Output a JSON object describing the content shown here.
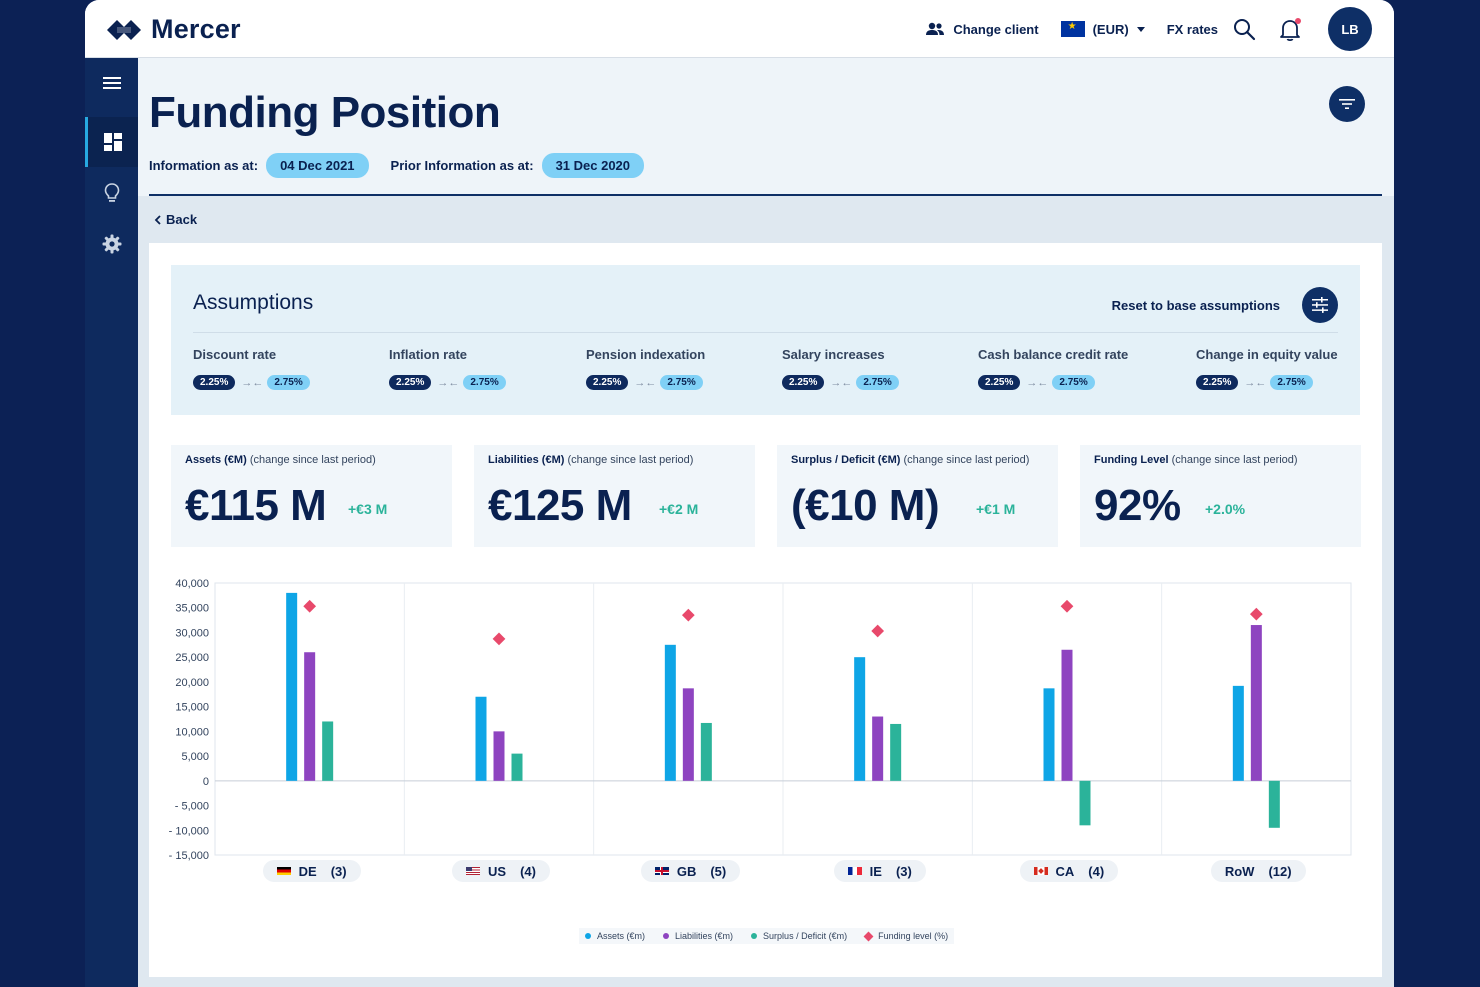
{
  "brand": {
    "name": "Mercer"
  },
  "header": {
    "change_client": "Change client",
    "currency": "(EUR)",
    "fx_rates": "FX rates",
    "user_initials": "LB"
  },
  "page": {
    "title": "Funding Position",
    "info_label": "Information as at:",
    "info_date": "04 Dec 2021",
    "prior_label": "Prior Information as at:",
    "prior_date": "31 Dec 2020",
    "back": "Back"
  },
  "assumptions": {
    "title": "Assumptions",
    "reset_label": "Reset to base assumptions",
    "items": [
      {
        "label": "Discount rate",
        "base": "2.25%",
        "current": "2.75%"
      },
      {
        "label": "Inflation rate",
        "base": "2.25%",
        "current": "2.75%"
      },
      {
        "label": "Pension indexation",
        "base": "2.25%",
        "current": "2.75%"
      },
      {
        "label": "Salary increases",
        "base": "2.25%",
        "current": "2.75%"
      },
      {
        "label": "Cash balance credit rate",
        "base": "2.25%",
        "current": "2.75%"
      },
      {
        "label": "Change in equity value",
        "base": "2.25%",
        "current": "2.75%"
      }
    ]
  },
  "kpis": [
    {
      "label": "Assets (€M)",
      "sub": "(change since last period)",
      "value": "€115 M",
      "change": "+€3 M"
    },
    {
      "label": "Liabilities (€M)",
      "sub": "(change since last period)",
      "value": "€125 M",
      "change": "+€2 M"
    },
    {
      "label": "Surplus / Deficit (€M)",
      "sub": "(change since last period)",
      "value": "(€10 M)",
      "change": "+€1 M"
    },
    {
      "label": "Funding Level",
      "sub": "(change since last period)",
      "value": "92%",
      "change": "+2.0%"
    }
  ],
  "colors": {
    "assets": "#0ea5e6",
    "liabilities": "#8e44c0",
    "surplus": "#2bb39a",
    "funding": "#e8496b"
  },
  "chart_data": {
    "type": "bar",
    "categories": [
      "DE",
      "US",
      "GB",
      "IE",
      "CA",
      "RoW"
    ],
    "category_counts": [
      "(3)",
      "(4)",
      "(5)",
      "(3)",
      "(4)",
      "(12)"
    ],
    "ylim": [
      -15000,
      40000
    ],
    "yticks": [
      40000,
      35000,
      30000,
      25000,
      20000,
      15000,
      10000,
      5000,
      0,
      -5000,
      -10000,
      -15000
    ],
    "ytick_labels": [
      "40,000",
      "35,000",
      "30,000",
      "25,000",
      "20,000",
      "15,000",
      "10,000",
      "5,000",
      "0",
      "- 5,000",
      "- 10,000",
      "- 15,000"
    ],
    "series": [
      {
        "name": "Assets (€m)",
        "values": [
          38000,
          17000,
          27500,
          25000,
          18700,
          19200
        ]
      },
      {
        "name": "Liabilities (€m)",
        "values": [
          26000,
          10000,
          18700,
          13000,
          26500,
          31500
        ]
      },
      {
        "name": "Surplus / Deficit (€m)",
        "values": [
          12000,
          5500,
          11700,
          11500,
          -9000,
          -9500
        ]
      },
      {
        "name": "Funding level (%)",
        "type": "scatter",
        "values": [
          35300,
          28700,
          33500,
          30300,
          35300,
          33700
        ]
      }
    ],
    "legend": "bottom"
  }
}
